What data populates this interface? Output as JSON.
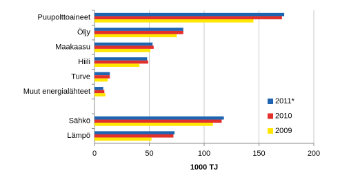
{
  "chart_data": {
    "type": "hbar",
    "categories": [
      "Puupolttoaineet",
      "Öljy",
      "Maakaasu",
      "Hiili",
      "Turve",
      "Muut energialähteet",
      null,
      "Sähkö",
      "Lämpö"
    ],
    "series": [
      {
        "name": "2011*",
        "color": "#1f64b0",
        "values": [
          173,
          81,
          53,
          48,
          14,
          8,
          null,
          118,
          73
        ]
      },
      {
        "name": "2010",
        "color": "#e3302b",
        "values": [
          171,
          81,
          54,
          49,
          14,
          9,
          null,
          116,
          72
        ]
      },
      {
        "name": "2009",
        "color": "#ffe600",
        "values": [
          145,
          75,
          51,
          41,
          12,
          10,
          null,
          108,
          52
        ]
      }
    ],
    "xlabel": "1000 TJ",
    "xlim": [
      0,
      200
    ],
    "xticks": [
      0,
      50,
      100,
      150,
      200
    ],
    "grid": true,
    "legend": "right"
  }
}
